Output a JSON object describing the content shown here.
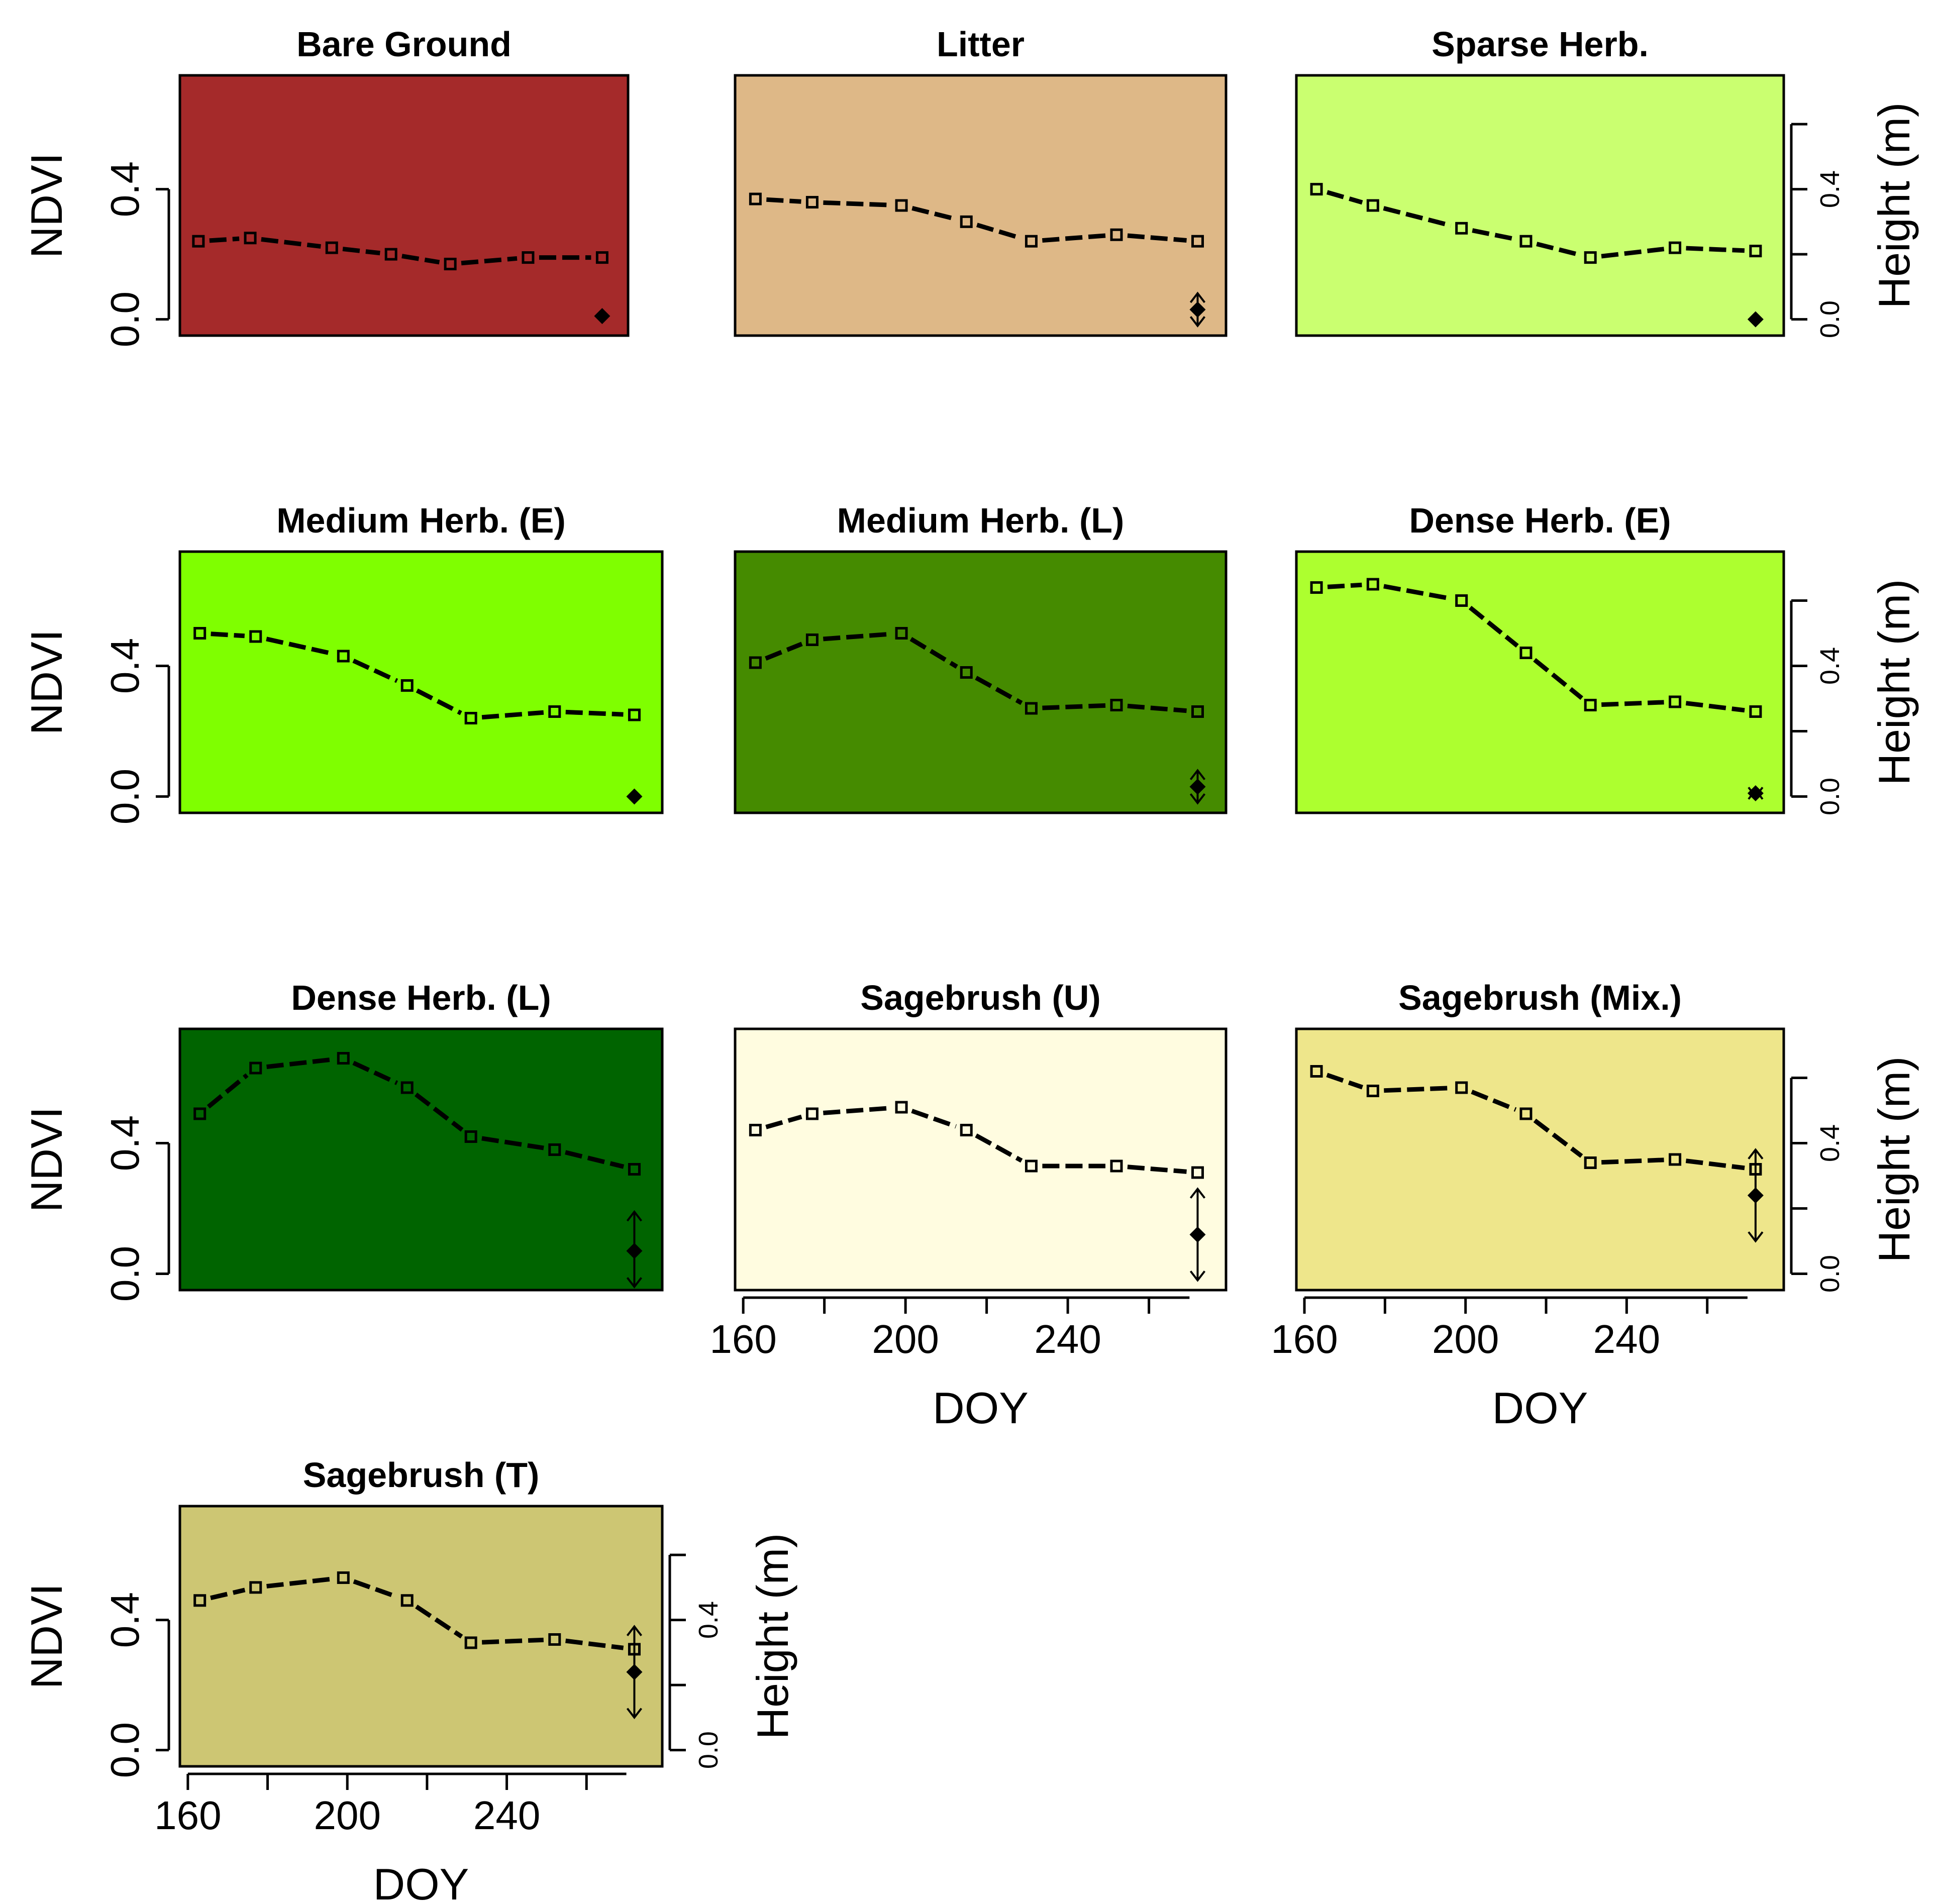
{
  "chart_data": [
    {
      "type": "line",
      "title": "Bare Ground",
      "bg": "#a52a2a",
      "x": [
        163,
        177,
        199,
        215,
        231,
        252,
        272
      ],
      "y": [
        0.24,
        0.25,
        0.22,
        0.2,
        0.17,
        0.19,
        0.19
      ],
      "height": {
        "x": 272,
        "value": 0.01,
        "low": 0.005,
        "high": 0.015
      },
      "ylabel": "NDVI",
      "xlabel": "",
      "yticks": [
        "0.0",
        "0.4"
      ],
      "xticks": [],
      "height_axis": null
    },
    {
      "type": "line",
      "title": "Litter",
      "bg": "#deb887",
      "x": [
        163,
        177,
        199,
        215,
        231,
        252,
        272
      ],
      "y": [
        0.37,
        0.36,
        0.35,
        0.3,
        0.24,
        0.26,
        0.24
      ],
      "height": {
        "x": 272,
        "value": 0.03,
        "low": -0.02,
        "high": 0.08
      },
      "ylabel": "",
      "xlabel": "",
      "yticks": [],
      "xticks": [],
      "height_axis": null
    },
    {
      "type": "line",
      "title": "Sparse Herb.",
      "bg": "#caff70",
      "x": [
        163,
        177,
        199,
        215,
        231,
        252,
        272
      ],
      "y": [
        0.4,
        0.35,
        0.28,
        0.24,
        0.19,
        0.22,
        0.21
      ],
      "height": {
        "x": 272,
        "value": 0.0,
        "low": -0.005,
        "high": 0.005
      },
      "ylabel": "",
      "xlabel": "",
      "yticks": [],
      "xticks": [],
      "height_axis": {
        "label": "Height (m)",
        "ticks": [
          "0.0",
          "0.4"
        ]
      }
    },
    {
      "type": "line",
      "title": "Medium Herb. (E)",
      "bg": "#7fff00",
      "x": [
        163,
        177,
        199,
        215,
        231,
        252,
        272
      ],
      "y": [
        0.5,
        0.49,
        0.43,
        0.34,
        0.24,
        0.26,
        0.25
      ],
      "height": {
        "x": 272,
        "value": 0.0,
        "low": -0.005,
        "high": 0.005
      },
      "ylabel": "NDVI",
      "xlabel": "",
      "yticks": [
        "0.0",
        "0.4"
      ],
      "xticks": [],
      "height_axis": null
    },
    {
      "type": "line",
      "title": "Medium Herb. (L)",
      "bg": "#458b00",
      "x": [
        163,
        177,
        199,
        215,
        231,
        252,
        272
      ],
      "y": [
        0.41,
        0.48,
        0.5,
        0.38,
        0.27,
        0.28,
        0.26
      ],
      "height": {
        "x": 272,
        "value": 0.03,
        "low": -0.02,
        "high": 0.08
      },
      "ylabel": "",
      "xlabel": "",
      "yticks": [],
      "xticks": [],
      "height_axis": null
    },
    {
      "type": "line",
      "title": "Dense Herb. (E)",
      "bg": "#adff2f",
      "x": [
        163,
        177,
        199,
        215,
        231,
        252,
        272
      ],
      "y": [
        0.64,
        0.65,
        0.6,
        0.44,
        0.28,
        0.29,
        0.26
      ],
      "height": {
        "x": 272,
        "value": 0.01,
        "low": 0.0,
        "high": 0.02
      },
      "ylabel": "",
      "xlabel": "",
      "yticks": [],
      "xticks": [],
      "height_axis": {
        "label": "Height (m)",
        "ticks": [
          "0.0",
          "0.4"
        ]
      }
    },
    {
      "type": "line",
      "title": "Dense Herb. (L)",
      "bg": "#006400",
      "x": [
        163,
        177,
        199,
        215,
        231,
        252,
        272
      ],
      "y": [
        0.49,
        0.63,
        0.66,
        0.57,
        0.42,
        0.38,
        0.32
      ],
      "height": {
        "x": 272,
        "value": 0.07,
        "low": -0.04,
        "high": 0.19
      },
      "ylabel": "NDVI",
      "xlabel": "",
      "yticks": [
        "0.0",
        "0.4"
      ],
      "xticks": [],
      "height_axis": null
    },
    {
      "type": "line",
      "title": "Sagebrush (U)",
      "bg": "#fffce0",
      "x": [
        163,
        177,
        199,
        215,
        231,
        252,
        272
      ],
      "y": [
        0.44,
        0.49,
        0.51,
        0.44,
        0.33,
        0.33,
        0.31
      ],
      "height": {
        "x": 272,
        "value": 0.12,
        "low": -0.02,
        "high": 0.26
      },
      "ylabel": "",
      "xlabel": "DOY",
      "yticks": [],
      "xticks": [
        "160",
        "200",
        "240"
      ],
      "height_axis": null
    },
    {
      "type": "line",
      "title": "Sagebrush (Mix.)",
      "bg": "#eee68b",
      "x": [
        163,
        177,
        199,
        215,
        231,
        252,
        272
      ],
      "y": [
        0.62,
        0.56,
        0.57,
        0.49,
        0.34,
        0.35,
        0.32
      ],
      "height": {
        "x": 272,
        "value": 0.24,
        "low": 0.1,
        "high": 0.38
      },
      "ylabel": "",
      "xlabel": "DOY",
      "yticks": [],
      "xticks": [
        "160",
        "200",
        "240"
      ],
      "height_axis": {
        "label": "Height (m)",
        "ticks": [
          "0.0",
          "0.4"
        ]
      }
    },
    {
      "type": "line",
      "title": "Sagebrush (T)",
      "bg": "#cdc673",
      "x": [
        163,
        177,
        199,
        215,
        231,
        252,
        272
      ],
      "y": [
        0.46,
        0.5,
        0.53,
        0.46,
        0.33,
        0.34,
        0.31
      ],
      "height": {
        "x": 272,
        "value": 0.24,
        "low": 0.1,
        "high": 0.38
      },
      "ylabel": "NDVI",
      "xlabel": "DOY",
      "yticks": [
        "0.0",
        "0.4"
      ],
      "xticks": [
        "160",
        "200",
        "240"
      ],
      "height_axis": {
        "label": "Height (m)",
        "ticks": [
          "0.0",
          "0.4"
        ]
      }
    }
  ]
}
